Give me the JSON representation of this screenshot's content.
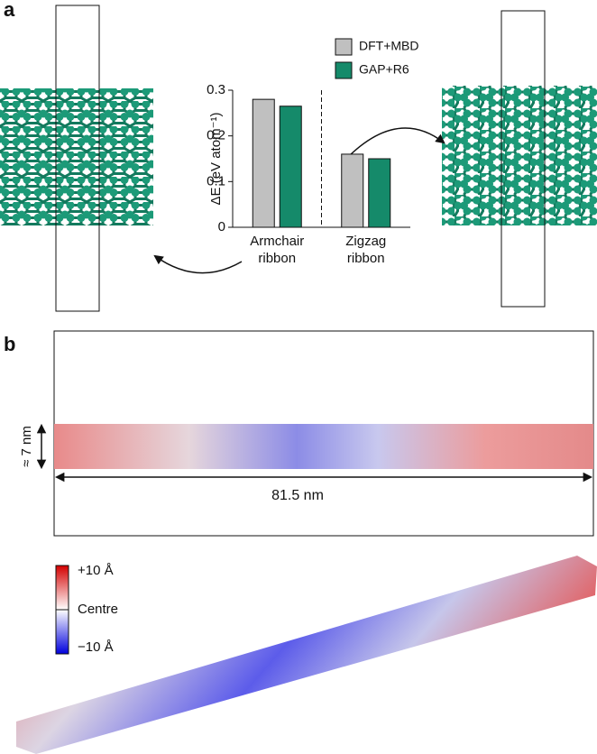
{
  "panels": [
    "a",
    "b"
  ],
  "chart_data": {
    "type": "bar",
    "ylabel": "ΔE (eV atom⁻¹)",
    "categories": [
      "Armchair ribbon",
      "Zigzag ribbon"
    ],
    "series": [
      {
        "name": "DFT+MBD",
        "color": "#c0c0c0",
        "values": [
          0.28,
          0.16
        ]
      },
      {
        "name": "GAP+R6",
        "color": "#158a6a",
        "values": [
          0.265,
          0.15
        ]
      }
    ],
    "ylim": [
      0,
      0.3
    ],
    "yticks": [
      0,
      0.1,
      0.2,
      0.3
    ]
  },
  "annotations": {
    "width": "≈ 7 nm",
    "length": "81.5 nm"
  },
  "colorbar": {
    "top": "+10 Å",
    "middle": "Centre",
    "bottom": "−10 Å"
  }
}
